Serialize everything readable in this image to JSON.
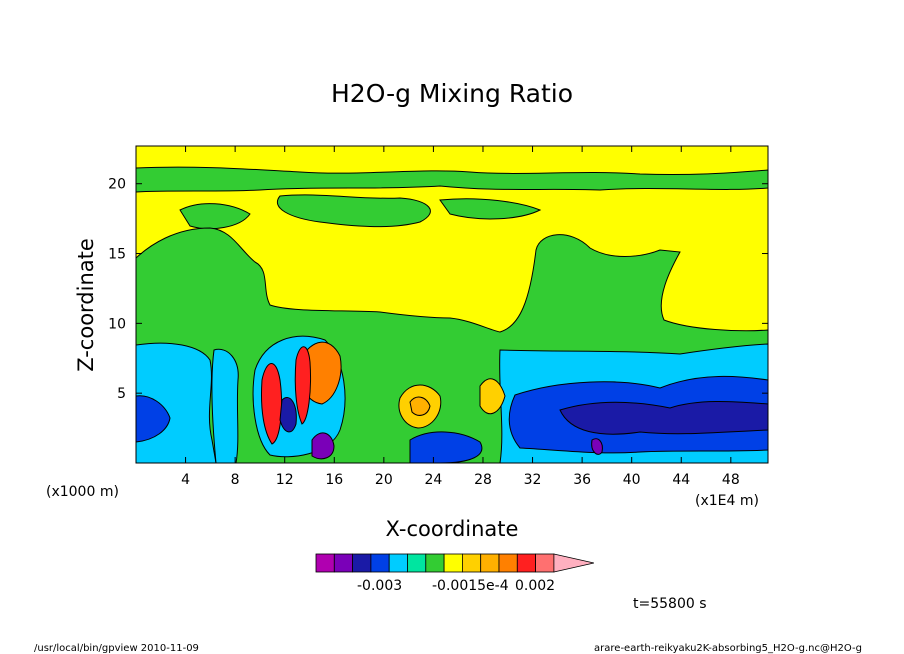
{
  "chart_data": {
    "type": "heatmap",
    "title": "H2O-g Mixing Ratio",
    "xlabel": "X-coordinate",
    "ylabel": "Z-coordinate",
    "x_unit_label": "(x1000 m)",
    "x_scale_label": "(x1E4 m)",
    "xlim": [
      0,
      51
    ],
    "ylim": [
      0,
      22.7
    ],
    "x_ticks": [
      4,
      8,
      12,
      16,
      20,
      24,
      28,
      32,
      36,
      40,
      44,
      48
    ],
    "y_ticks": [
      5,
      10,
      15,
      20
    ],
    "colorbar": {
      "colors": [
        "#b000b0",
        "#7a00b8",
        "#1a1aa6",
        "#0040e6",
        "#00ccff",
        "#00e5a0",
        "#33cc33",
        "#ffff00",
        "#ffd000",
        "#ffb000",
        "#ff8000",
        "#ff2020",
        "#ff7070",
        "#ffb0c0"
      ],
      "labels": [
        "-0.003",
        "-0.0015e-4",
        "0.002"
      ]
    },
    "time_label": "t=55800 s",
    "footer_left": "/usr/local/bin/gpview   2010-11-09",
    "footer_right": "arare-earth-reikyaku2K-absorbing5_H2O-g.nc@H2O-g"
  }
}
